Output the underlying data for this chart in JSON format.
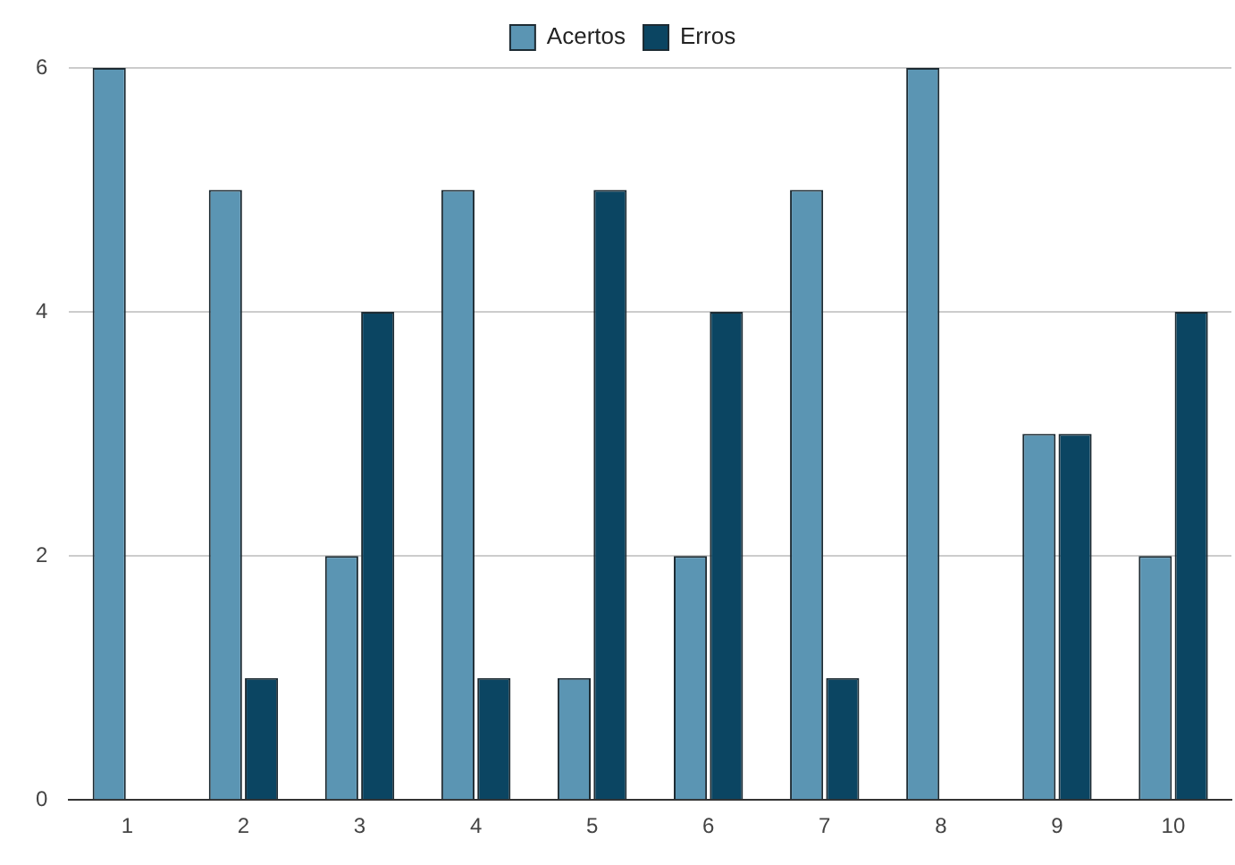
{
  "chart_data": {
    "type": "bar",
    "categories": [
      "1",
      "2",
      "3",
      "4",
      "5",
      "6",
      "7",
      "8",
      "9",
      "10"
    ],
    "series": [
      {
        "name": "Acertos",
        "color": "#5b95b3",
        "values": [
          6,
          5,
          2,
          5,
          1,
          2,
          5,
          6,
          3,
          2
        ]
      },
      {
        "name": "Erros",
        "color": "#0b4562",
        "values": [
          0,
          1,
          4,
          1,
          5,
          4,
          1,
          0,
          3,
          4
        ]
      }
    ],
    "ylim": [
      0,
      6
    ],
    "yticks": [
      0,
      2,
      4,
      6
    ],
    "grid": "y",
    "legend": "top"
  }
}
